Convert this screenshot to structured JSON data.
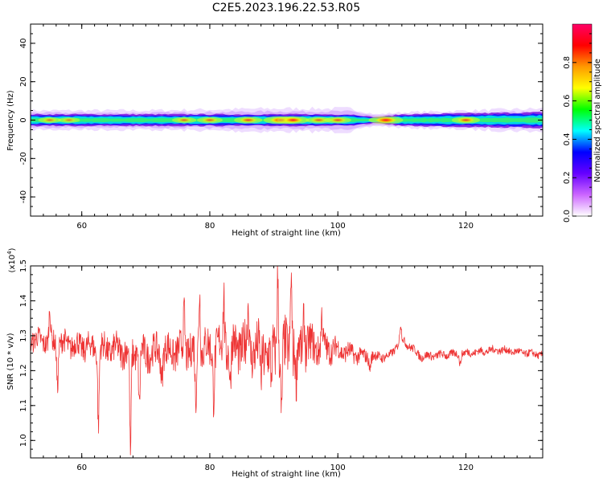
{
  "title": "C2E5.2023.196.22.53.R05",
  "chart_data": [
    {
      "type": "heatmap",
      "xlabel": "Height of straight line (km)",
      "ylabel": "Frequency (Hz)",
      "xlim": [
        52,
        132
      ],
      "ylim": [
        -50,
        50
      ],
      "xticks": [
        60,
        80,
        100,
        120
      ],
      "yticks": [
        -40,
        -20,
        0,
        20,
        40
      ],
      "band": {
        "center_frequency": 0,
        "half_width": [
          [
            52,
            3
          ],
          [
            70,
            3
          ],
          [
            90,
            3
          ],
          [
            102,
            3
          ],
          [
            106,
            1.5
          ],
          [
            110,
            3
          ],
          [
            132,
            4
          ]
        ],
        "outer_halo": [
          [
            52,
            5
          ],
          [
            70,
            5
          ],
          [
            90,
            6
          ],
          [
            102,
            6
          ],
          [
            106,
            3
          ],
          [
            110,
            4
          ],
          [
            132,
            6
          ]
        ]
      },
      "hotspots": [
        {
          "x": 55,
          "amplitude": 0.5
        },
        {
          "x": 58,
          "amplitude": 0.45
        },
        {
          "x": 76,
          "amplitude": 0.55
        },
        {
          "x": 80,
          "amplitude": 0.6
        },
        {
          "x": 86,
          "amplitude": 0.7
        },
        {
          "x": 91,
          "amplitude": 0.9
        },
        {
          "x": 93,
          "amplitude": 0.85
        },
        {
          "x": 97,
          "amplitude": 0.6
        },
        {
          "x": 100,
          "amplitude": 0.65
        },
        {
          "x": 107.5,
          "amplitude": 0.95
        },
        {
          "x": 120,
          "amplitude": 0.7
        }
      ],
      "colorbar": {
        "label": "Normalized spectral amplitude",
        "range": [
          0,
          1
        ],
        "ticks": [
          "0.0",
          "0.2",
          "0.4",
          "0.6",
          "0.8"
        ],
        "colors": [
          "#ffffff",
          "#cc66ff",
          "#6600ff",
          "#0000ff",
          "#00ffff",
          "#00ff00",
          "#ffff00",
          "#ff9900",
          "#ff0000",
          "#ff0066"
        ]
      }
    },
    {
      "type": "line",
      "xlabel": "Height of straight line (km)",
      "ylabel": "SNR (10 * v/v)",
      "scale_label": "(x10",
      "scale_exp": "4",
      "scale_close": ")",
      "xlim": [
        52,
        132
      ],
      "ylim": [
        0.95,
        1.5
      ],
      "xticks": [
        60,
        80,
        100,
        120
      ],
      "yticks": [
        "1.0",
        "1.1",
        "1.2",
        "1.3",
        "1.4",
        "1.5"
      ],
      "color": "#ee3333",
      "envelope": [
        [
          52,
          1.29
        ],
        [
          60,
          1.27
        ],
        [
          70,
          1.25
        ],
        [
          78,
          1.26
        ],
        [
          84,
          1.27
        ],
        [
          90,
          1.25
        ],
        [
          96,
          1.27
        ],
        [
          100,
          1.26
        ],
        [
          104,
          1.24
        ],
        [
          108,
          1.24
        ],
        [
          110,
          1.29
        ],
        [
          113,
          1.24
        ],
        [
          120,
          1.25
        ],
        [
          125,
          1.26
        ],
        [
          132,
          1.245
        ]
      ],
      "noise_amplitude": [
        [
          52,
          0.03
        ],
        [
          75,
          0.05
        ],
        [
          92,
          0.08
        ],
        [
          100,
          0.03
        ],
        [
          108,
          0.012
        ],
        [
          112,
          0.012
        ],
        [
          132,
          0.01
        ]
      ],
      "spikes": [
        {
          "x": 55,
          "y": 1.37
        },
        {
          "x": 56.2,
          "y": 1.16
        },
        {
          "x": 62.6,
          "y": 1.05
        },
        {
          "x": 67.6,
          "y": 0.95
        },
        {
          "x": 69,
          "y": 1.09
        },
        {
          "x": 72.5,
          "y": 1.18
        },
        {
          "x": 76,
          "y": 1.37
        },
        {
          "x": 77.8,
          "y": 1.1
        },
        {
          "x": 78.4,
          "y": 1.44
        },
        {
          "x": 80.6,
          "y": 1.14
        },
        {
          "x": 82.2,
          "y": 1.42
        },
        {
          "x": 83.2,
          "y": 1.15
        },
        {
          "x": 86,
          "y": 1.38
        },
        {
          "x": 88,
          "y": 1.17
        },
        {
          "x": 89.6,
          "y": 1.16
        },
        {
          "x": 90.6,
          "y": 1.49
        },
        {
          "x": 91.2,
          "y": 1.06
        },
        {
          "x": 92.7,
          "y": 1.5
        },
        {
          "x": 93.5,
          "y": 1.15
        },
        {
          "x": 94.7,
          "y": 1.37
        },
        {
          "x": 97.5,
          "y": 1.35
        },
        {
          "x": 105,
          "y": 1.21
        },
        {
          "x": 109.8,
          "y": 1.33
        },
        {
          "x": 119.1,
          "y": 1.22
        }
      ]
    }
  ]
}
